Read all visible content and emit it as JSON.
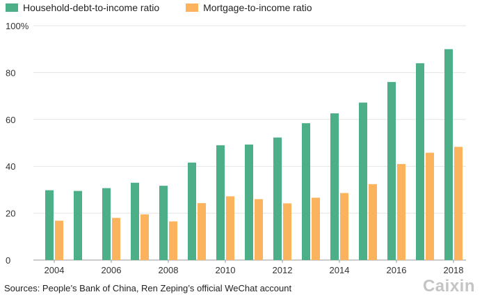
{
  "chart_data": {
    "type": "bar",
    "categories": [
      "2004",
      "2005",
      "2006",
      "2007",
      "2008",
      "2009",
      "2010",
      "2011",
      "2012",
      "2013",
      "2014",
      "2015",
      "2016",
      "2017",
      "2018"
    ],
    "x_tick_labels": [
      "2004",
      "2006",
      "2008",
      "2010",
      "2012",
      "2014",
      "2016",
      "2018"
    ],
    "series": [
      {
        "name": "Household-debt-to-income ratio",
        "color": "#4caf87",
        "values": [
          29.8,
          29.5,
          30.7,
          33.0,
          31.7,
          41.6,
          49.0,
          49.3,
          52.3,
          58.4,
          62.6,
          67.2,
          76.0,
          84.0,
          90.0
        ]
      },
      {
        "name": "Mortgage-to-income ratio",
        "color": "#fbb35e",
        "values": [
          16.8,
          null,
          18.0,
          19.5,
          16.5,
          24.3,
          27.2,
          26.0,
          24.2,
          26.6,
          28.6,
          32.4,
          41.0,
          45.8,
          48.3
        ]
      }
    ],
    "ylim": [
      0,
      100
    ],
    "y_ticks": [
      0,
      20,
      40,
      60,
      80,
      100
    ],
    "y_tick_labels": [
      "0",
      "20",
      "40",
      "60",
      "80",
      "100%"
    ],
    "grid": true,
    "legend_position": "top-left"
  },
  "source_text": "Sources: People’s Bank of China, Ren Zeping’s official WeChat account",
  "logo_text": "Caixin"
}
